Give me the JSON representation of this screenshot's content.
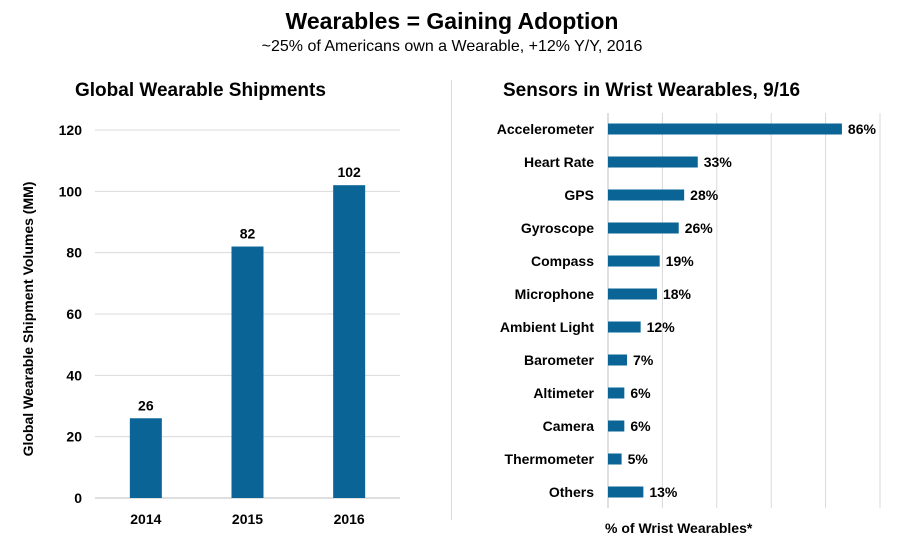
{
  "header": {
    "title": "Wearables = Gaining Adoption",
    "subtitle": "~25% of Americans own a Wearable, +12% Y/Y, 2016"
  },
  "colors": {
    "bar": "#0a6496",
    "grid": "#d9d9d9"
  },
  "chart_data": [
    {
      "type": "bar",
      "title": "Global Wearable Shipments",
      "ylabel": "Global Wearable Shipment Volumes (MM)",
      "xlabel": "",
      "categories": [
        "2014",
        "2015",
        "2016"
      ],
      "values": [
        26,
        82,
        102
      ],
      "data_labels": [
        "26",
        "82",
        "102"
      ],
      "ylim": [
        0,
        120
      ],
      "yticks": [
        0,
        20,
        40,
        60,
        80,
        100,
        120
      ],
      "grid": true
    },
    {
      "type": "bar",
      "orientation": "horizontal",
      "title": "Sensors in Wrist Wearables, 9/16",
      "xlabel": "% of Wrist Wearables*",
      "categories": [
        "Accelerometer",
        "Heart Rate",
        "GPS",
        "Gyroscope",
        "Compass",
        "Microphone",
        "Ambient Light",
        "Barometer",
        "Altimeter",
        "Camera",
        "Thermometer",
        "Others"
      ],
      "values": [
        86,
        33,
        28,
        26,
        19,
        18,
        12,
        7,
        6,
        6,
        5,
        13
      ],
      "data_labels": [
        "86%",
        "33%",
        "28%",
        "26%",
        "19%",
        "18%",
        "12%",
        "7%",
        "6%",
        "6%",
        "5%",
        "13%"
      ],
      "xlim": [
        0,
        100
      ],
      "grid": true
    }
  ]
}
